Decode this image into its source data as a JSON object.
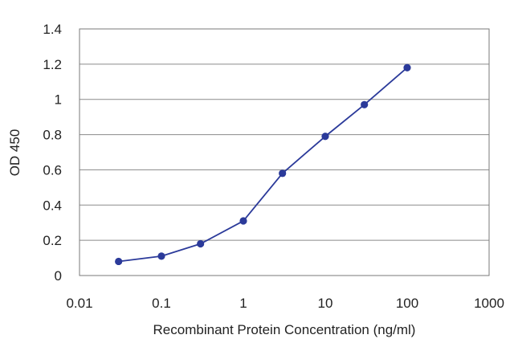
{
  "chart_data": {
    "type": "line",
    "title": "",
    "xlabel": "Recombinant Protein Concentration (ng/ml)",
    "ylabel": "OD 450",
    "x_scale": "log",
    "xlim": [
      0.01,
      1000
    ],
    "ylim": [
      0,
      1.4
    ],
    "x_ticks": [
      {
        "value": 0.01,
        "label": "0.01"
      },
      {
        "value": 0.1,
        "label": "0.1"
      },
      {
        "value": 1,
        "label": "1"
      },
      {
        "value": 10,
        "label": "10"
      },
      {
        "value": 100,
        "label": "100"
      },
      {
        "value": 1000,
        "label": "1000"
      }
    ],
    "y_ticks": [
      {
        "value": 0,
        "label": "0"
      },
      {
        "value": 0.2,
        "label": "0.2"
      },
      {
        "value": 0.4,
        "label": "0.4"
      },
      {
        "value": 0.6,
        "label": "0.6"
      },
      {
        "value": 0.8,
        "label": "0.8"
      },
      {
        "value": 1.0,
        "label": "1"
      },
      {
        "value": 1.2,
        "label": "1.2"
      },
      {
        "value": 1.4,
        "label": "1.4"
      }
    ],
    "grid": {
      "horizontal": true,
      "vertical": false
    },
    "legend": "none",
    "series": [
      {
        "color": "#2b3a9a",
        "points": [
          {
            "x": 0.03,
            "y": 0.08
          },
          {
            "x": 0.1,
            "y": 0.11
          },
          {
            "x": 0.3,
            "y": 0.18
          },
          {
            "x": 1,
            "y": 0.31
          },
          {
            "x": 3,
            "y": 0.58
          },
          {
            "x": 10,
            "y": 0.79
          },
          {
            "x": 30,
            "y": 0.97
          },
          {
            "x": 100,
            "y": 1.18
          }
        ]
      }
    ]
  }
}
